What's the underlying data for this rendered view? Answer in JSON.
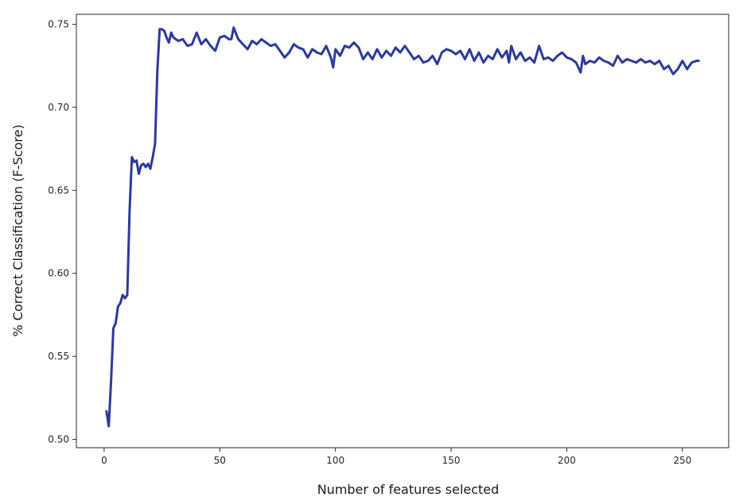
{
  "chart_data": {
    "type": "line",
    "title": "",
    "xlabel": "Number of features selected",
    "ylabel": "% Correct Classification (F-Score)",
    "xlim": [
      -12,
      270
    ],
    "ylim": [
      0.495,
      0.756
    ],
    "x_ticks": [
      0,
      50,
      100,
      150,
      200,
      250
    ],
    "y_ticks": [
      0.5,
      0.55,
      0.6,
      0.65,
      0.7,
      0.75
    ],
    "x_tick_labels": [
      "0",
      "50",
      "100",
      "150",
      "200",
      "250"
    ],
    "y_tick_labels": [
      "0.50",
      "0.55",
      "0.60",
      "0.65",
      "0.70",
      "0.75"
    ],
    "grid": false,
    "legend": "none",
    "line_color": "#2b3a9c",
    "series": [
      {
        "x": [
          1,
          2,
          3,
          4,
          5,
          6,
          7,
          8,
          9,
          10,
          11,
          12,
          13,
          14,
          15,
          16,
          17,
          18,
          19,
          20,
          21,
          22,
          23,
          24,
          25,
          26,
          27,
          28,
          29,
          30,
          32,
          34,
          36,
          38,
          40,
          42,
          44,
          46,
          48,
          50,
          52,
          54,
          55,
          56,
          58,
          60,
          62,
          64,
          66,
          68,
          70,
          72,
          74,
          76,
          78,
          80,
          82,
          84,
          86,
          88,
          90,
          92,
          94,
          96,
          98,
          99,
          100,
          102,
          104,
          106,
          108,
          110,
          112,
          114,
          116,
          118,
          120,
          122,
          124,
          126,
          128,
          130,
          132,
          134,
          136,
          138,
          140,
          142,
          144,
          146,
          148,
          150,
          152,
          154,
          156,
          158,
          160,
          162,
          164,
          166,
          168,
          170,
          172,
          174,
          175,
          176,
          178,
          180,
          182,
          184,
          186,
          188,
          190,
          192,
          194,
          196,
          198,
          200,
          202,
          204,
          206,
          207,
          208,
          210,
          212,
          214,
          216,
          218,
          220,
          222,
          224,
          226,
          228,
          230,
          232,
          234,
          236,
          238,
          240,
          242,
          244,
          246,
          248,
          250,
          252,
          254,
          256,
          257
        ],
        "y": [
          0.517,
          0.508,
          0.535,
          0.567,
          0.57,
          0.58,
          0.582,
          0.587,
          0.585,
          0.587,
          0.638,
          0.67,
          0.667,
          0.668,
          0.66,
          0.665,
          0.666,
          0.664,
          0.666,
          0.663,
          0.67,
          0.678,
          0.722,
          0.747,
          0.747,
          0.746,
          0.742,
          0.739,
          0.745,
          0.742,
          0.74,
          0.741,
          0.737,
          0.738,
          0.745,
          0.738,
          0.741,
          0.737,
          0.734,
          0.742,
          0.743,
          0.741,
          0.741,
          0.748,
          0.741,
          0.738,
          0.735,
          0.74,
          0.738,
          0.741,
          0.739,
          0.737,
          0.738,
          0.734,
          0.73,
          0.733,
          0.738,
          0.736,
          0.735,
          0.73,
          0.735,
          0.733,
          0.732,
          0.737,
          0.73,
          0.724,
          0.735,
          0.731,
          0.737,
          0.736,
          0.739,
          0.736,
          0.729,
          0.733,
          0.729,
          0.735,
          0.73,
          0.734,
          0.731,
          0.736,
          0.733,
          0.737,
          0.733,
          0.729,
          0.731,
          0.727,
          0.728,
          0.731,
          0.726,
          0.733,
          0.735,
          0.734,
          0.732,
          0.734,
          0.729,
          0.735,
          0.728,
          0.733,
          0.727,
          0.731,
          0.729,
          0.735,
          0.73,
          0.734,
          0.727,
          0.737,
          0.729,
          0.733,
          0.728,
          0.73,
          0.727,
          0.737,
          0.729,
          0.73,
          0.728,
          0.731,
          0.733,
          0.73,
          0.729,
          0.727,
          0.721,
          0.731,
          0.726,
          0.728,
          0.727,
          0.73,
          0.728,
          0.727,
          0.725,
          0.731,
          0.727,
          0.729,
          0.728,
          0.727,
          0.729,
          0.727,
          0.728,
          0.726,
          0.728,
          0.723,
          0.725,
          0.72,
          0.723,
          0.728,
          0.723,
          0.727,
          0.728,
          0.728
        ]
      }
    ]
  }
}
